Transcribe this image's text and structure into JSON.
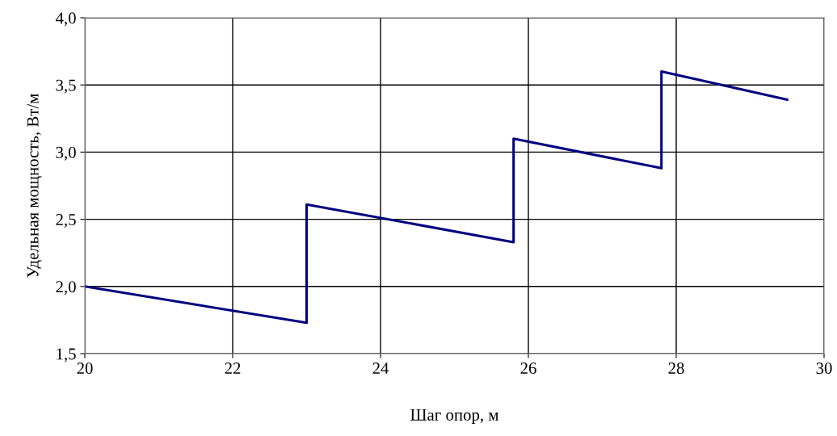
{
  "chart_data": {
    "type": "line",
    "xlabel": "Шаг опор, м",
    "ylabel": "Удельная мощность, Вт/м",
    "series": [
      {
        "color": "#000080",
        "x": [
          20,
          23.0,
          23.0,
          25.8,
          25.8,
          27.8,
          27.8,
          29.5
        ],
        "values": [
          2.0,
          1.73,
          2.61,
          2.33,
          3.1,
          2.88,
          3.6,
          3.39
        ]
      }
    ],
    "xlim": [
      20,
      30
    ],
    "xticks": [
      20,
      22,
      24,
      26,
      28,
      30
    ],
    "ylim": [
      1.5,
      4.0
    ],
    "yticks": [
      {
        "value": 1.5,
        "label": "1,5"
      },
      {
        "value": 2.0,
        "label": "2,0"
      },
      {
        "value": 2.5,
        "label": "2,5"
      },
      {
        "value": 3.0,
        "label": "3,0"
      },
      {
        "value": 3.5,
        "label": "3,5"
      },
      {
        "value": 4.0,
        "label": "4,0"
      }
    ],
    "grid": true,
    "marker": "none",
    "line_style": "solid"
  }
}
